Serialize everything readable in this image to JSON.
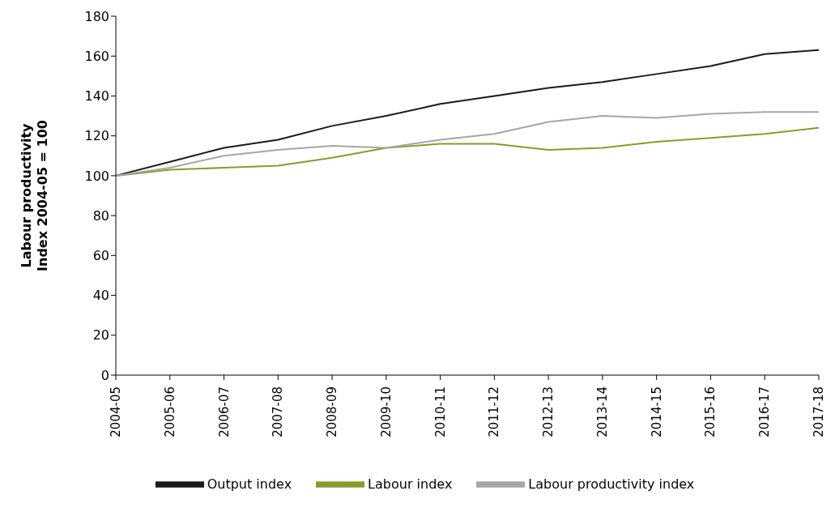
{
  "chart_data": {
    "type": "line",
    "ylabel": "Labour productivity\nIndex 2004-05 = 100",
    "categories": [
      "2004-05",
      "2005-06",
      "2006-07",
      "2007-08",
      "2008-09",
      "2009-10",
      "2010-11",
      "2011-12",
      "2012-13",
      "2013-14",
      "2014-15",
      "2015-16",
      "2016-17",
      "2017-18"
    ],
    "series": [
      {
        "name": "Output index",
        "color": "#1a1a1a",
        "values": [
          100,
          107,
          114,
          118,
          125,
          130,
          136,
          140,
          144,
          147,
          151,
          155,
          161,
          163
        ]
      },
      {
        "name": "Labour index",
        "color": "#8c9a2a",
        "values": [
          100,
          103,
          104,
          105,
          109,
          114,
          116,
          116,
          113,
          114,
          117,
          119,
          121,
          124
        ]
      },
      {
        "name": "Labour productivity index",
        "color": "#a6a6a6",
        "values": [
          100,
          104,
          110,
          113,
          115,
          114,
          118,
          121,
          127,
          130,
          129,
          131,
          132,
          132
        ]
      }
    ],
    "ylim": [
      0,
      180
    ],
    "yticks": [
      0,
      20,
      40,
      60,
      80,
      100,
      120,
      140,
      160,
      180
    ],
    "grid": false,
    "legend": "bottom",
    "marker": "none",
    "line_style": "solid"
  }
}
